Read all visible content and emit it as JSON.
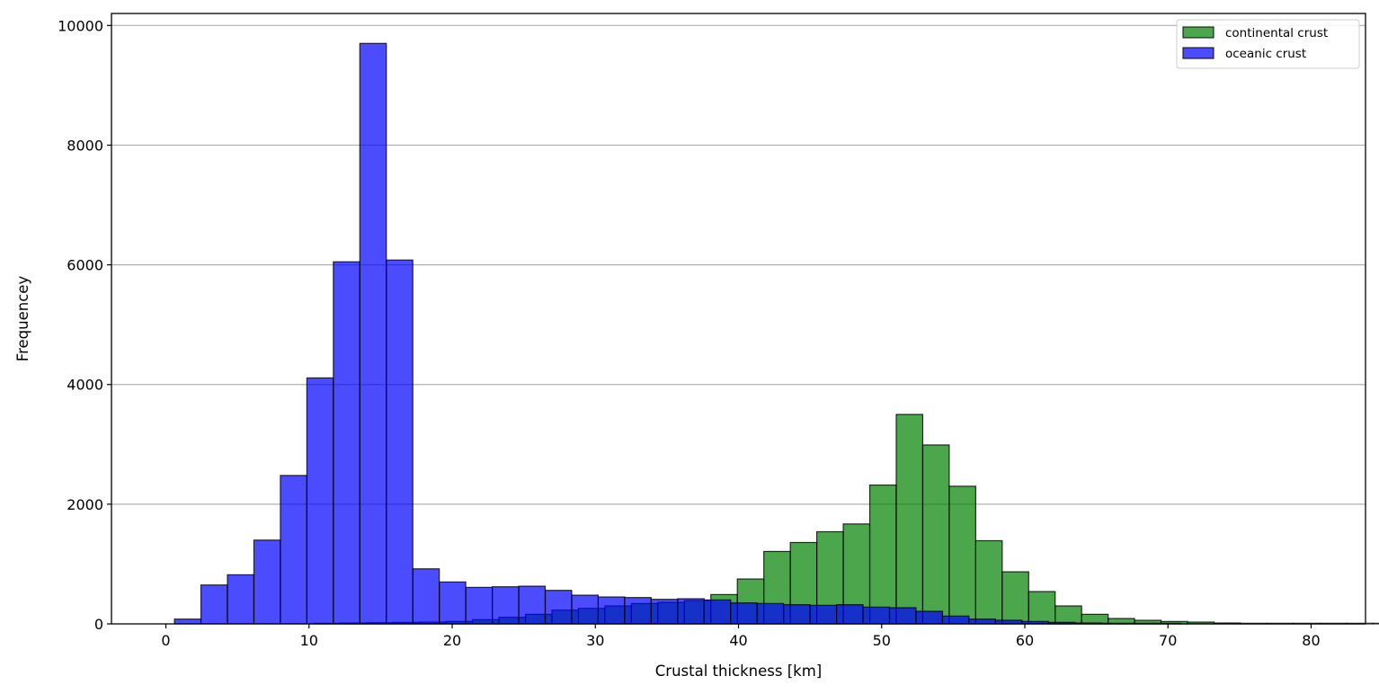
{
  "chart_data": {
    "type": "bar",
    "subtype": "histogram",
    "title": "",
    "xlabel": "Crustal thickness [km]",
    "ylabel": "Frequencey",
    "xlim": [
      -3.8,
      83.8
    ],
    "ylim": [
      0,
      10200
    ],
    "xticks": [
      0,
      10,
      20,
      30,
      40,
      50,
      60,
      70,
      80
    ],
    "yticks": [
      0,
      2000,
      4000,
      6000,
      8000,
      10000
    ],
    "grid": "y",
    "legend_position": "top-right",
    "overlay": true,
    "series": [
      {
        "name": "continental crust",
        "color": "#008000",
        "opacity": 0.7,
        "bin_start": 10.32,
        "bin_width": 1.85,
        "values": [
          10,
          15,
          20,
          25,
          30,
          40,
          70,
          110,
          160,
          230,
          260,
          300,
          340,
          360,
          390,
          490,
          750,
          1210,
          1360,
          1540,
          1670,
          2320,
          3500,
          2990,
          2300,
          1390,
          870,
          540,
          300,
          160,
          90,
          60,
          40,
          30,
          15,
          10,
          10,
          10,
          10,
          10,
          10,
          10,
          10,
          10
        ]
      },
      {
        "name": "oceanic crust",
        "color": "#0000ff",
        "opacity": 0.7,
        "bin_start": 0.6,
        "bin_width": 1.85,
        "values": [
          80,
          650,
          820,
          1400,
          2480,
          4110,
          6050,
          9700,
          6080,
          920,
          700,
          610,
          620,
          630,
          560,
          480,
          450,
          440,
          410,
          420,
          400,
          350,
          340,
          320,
          310,
          320,
          280,
          270,
          210,
          130,
          80,
          60,
          40,
          25,
          15,
          10,
          10,
          10
        ]
      }
    ]
  }
}
